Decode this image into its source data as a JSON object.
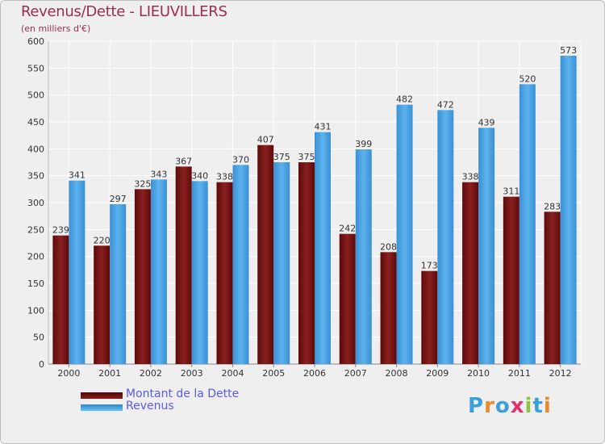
{
  "title": "Revenus/Dette - LIEUVILLERS",
  "subtitle": "(en milliers d'€)",
  "logo": {
    "text": "Proxiti",
    "letters": [
      "P",
      "r",
      "o",
      "x",
      "i",
      "t",
      "i"
    ],
    "colors": [
      "#3aa0d8",
      "#e8892a",
      "#3aa0d8",
      "#e0336e",
      "#8dc63f",
      "#3aa0d8",
      "#e8892a"
    ]
  },
  "colors": {
    "dette": "#7a1414",
    "revenus": "#4aa3e6",
    "frame": "#efefef"
  },
  "legend": [
    {
      "label": "Montant de la Dette",
      "color": "#7a1414"
    },
    {
      "label": "Revenus",
      "color": "#4aa3e6"
    }
  ],
  "chart_data": {
    "type": "bar",
    "title": "Revenus/Dette - LIEUVILLERS",
    "subtitle": "(en milliers d'€)",
    "categories": [
      "2000",
      "2001",
      "2002",
      "2003",
      "2004",
      "2005",
      "2006",
      "2007",
      "2008",
      "2009",
      "2010",
      "2011",
      "2012"
    ],
    "series": [
      {
        "name": "Montant de la Dette",
        "values": [
          239,
          220,
          325,
          367,
          338,
          407,
          375,
          242,
          208,
          173,
          338,
          311,
          283
        ]
      },
      {
        "name": "Revenus",
        "values": [
          341,
          297,
          343,
          340,
          370,
          375,
          431,
          399,
          482,
          472,
          439,
          520,
          573
        ]
      }
    ],
    "ylim": [
      0,
      600
    ],
    "yticks": [
      0,
      50,
      100,
      150,
      200,
      250,
      300,
      350,
      400,
      450,
      500,
      550,
      600
    ],
    "grid": true,
    "legend_position": "bottom-left"
  }
}
